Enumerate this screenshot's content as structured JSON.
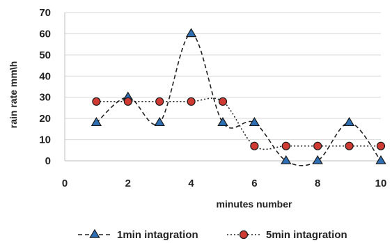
{
  "chart_data": {
    "type": "line",
    "xlabel": "minutes number",
    "ylabel": "rain  rate mm\\h",
    "xlim": [
      0,
      10
    ],
    "ylim": [
      0,
      70
    ],
    "xticks": [
      0,
      2,
      4,
      6,
      8,
      10
    ],
    "yticks": [
      0,
      10,
      20,
      30,
      40,
      50,
      60,
      70
    ],
    "grid": "horizontal",
    "legend_position": "bottom",
    "series": [
      {
        "name": "1min intagration",
        "marker": "triangle",
        "line_style": "dashed",
        "marker_fill": "#2e6fb3",
        "line_color": "#222222",
        "smooth": true,
        "x": [
          1,
          2,
          3,
          4,
          5,
          6,
          7,
          8,
          9,
          10
        ],
        "y": [
          18,
          30,
          18,
          60,
          18,
          18,
          0,
          0,
          18,
          0
        ]
      },
      {
        "name": "5min intagration",
        "marker": "circle",
        "line_style": "dotted",
        "marker_fill": "#cf3a33",
        "line_color": "#222222",
        "smooth": true,
        "x": [
          1,
          2,
          3,
          4,
          5,
          6,
          7,
          8,
          9,
          10
        ],
        "y": [
          28,
          28,
          28,
          28,
          28,
          7,
          7,
          7,
          7,
          7
        ]
      }
    ]
  }
}
